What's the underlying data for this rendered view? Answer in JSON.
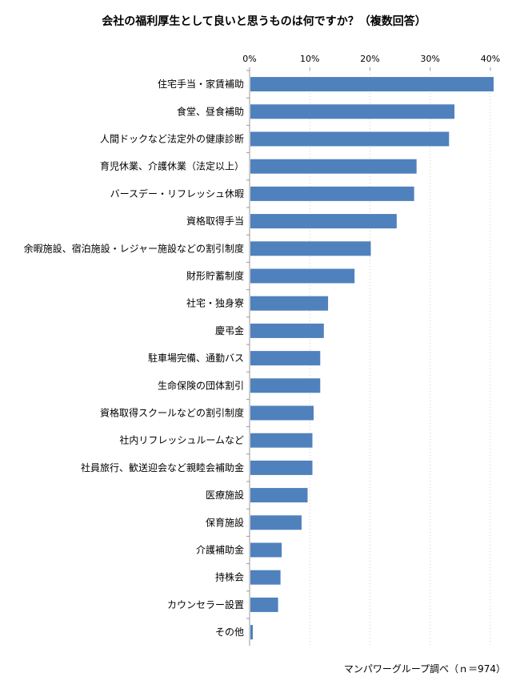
{
  "chart_data": {
    "type": "bar",
    "orientation": "horizontal",
    "title": "会社の福利厚生として良いと思うものは何ですか？（複数回答）",
    "source": "マンパワーグループ調べ（ｎ＝974）",
    "xlim": [
      0,
      40
    ],
    "ticks": [
      0,
      10,
      20,
      30,
      40
    ],
    "tick_labels": [
      "0%",
      "10%",
      "20%",
      "30%",
      "40%"
    ],
    "grid": false,
    "bar_color": "#4f81bd",
    "categories": [
      "住宅手当・家賃補助",
      "食堂、昼食補助",
      "人間ドックなど法定外の健康診断",
      "育児休業、介護休業（法定以上）",
      "バースデー・リフレッシュ休暇",
      "資格取得手当",
      "余暇施設、宿泊施設・レジャー施設などの割引制度",
      "財形貯蓄制度",
      "社宅・独身寮",
      "慶弔金",
      "駐車場完備、通勤バス",
      "生命保険の団体割引",
      "資格取得スクールなどの割引制度",
      "社内リフレッシュルームなど",
      "社員旅行、歓送迎会など親睦会補助金",
      "医療施設",
      "保育施設",
      "介護補助金",
      "持株会",
      "カウンセラー設置",
      "その他"
    ],
    "values": [
      40.4,
      33.9,
      33.0,
      27.6,
      27.2,
      24.3,
      20.0,
      17.3,
      12.9,
      12.2,
      11.6,
      11.6,
      10.5,
      10.3,
      10.3,
      9.5,
      8.5,
      5.2,
      5.0,
      4.6,
      0.4
    ]
  }
}
